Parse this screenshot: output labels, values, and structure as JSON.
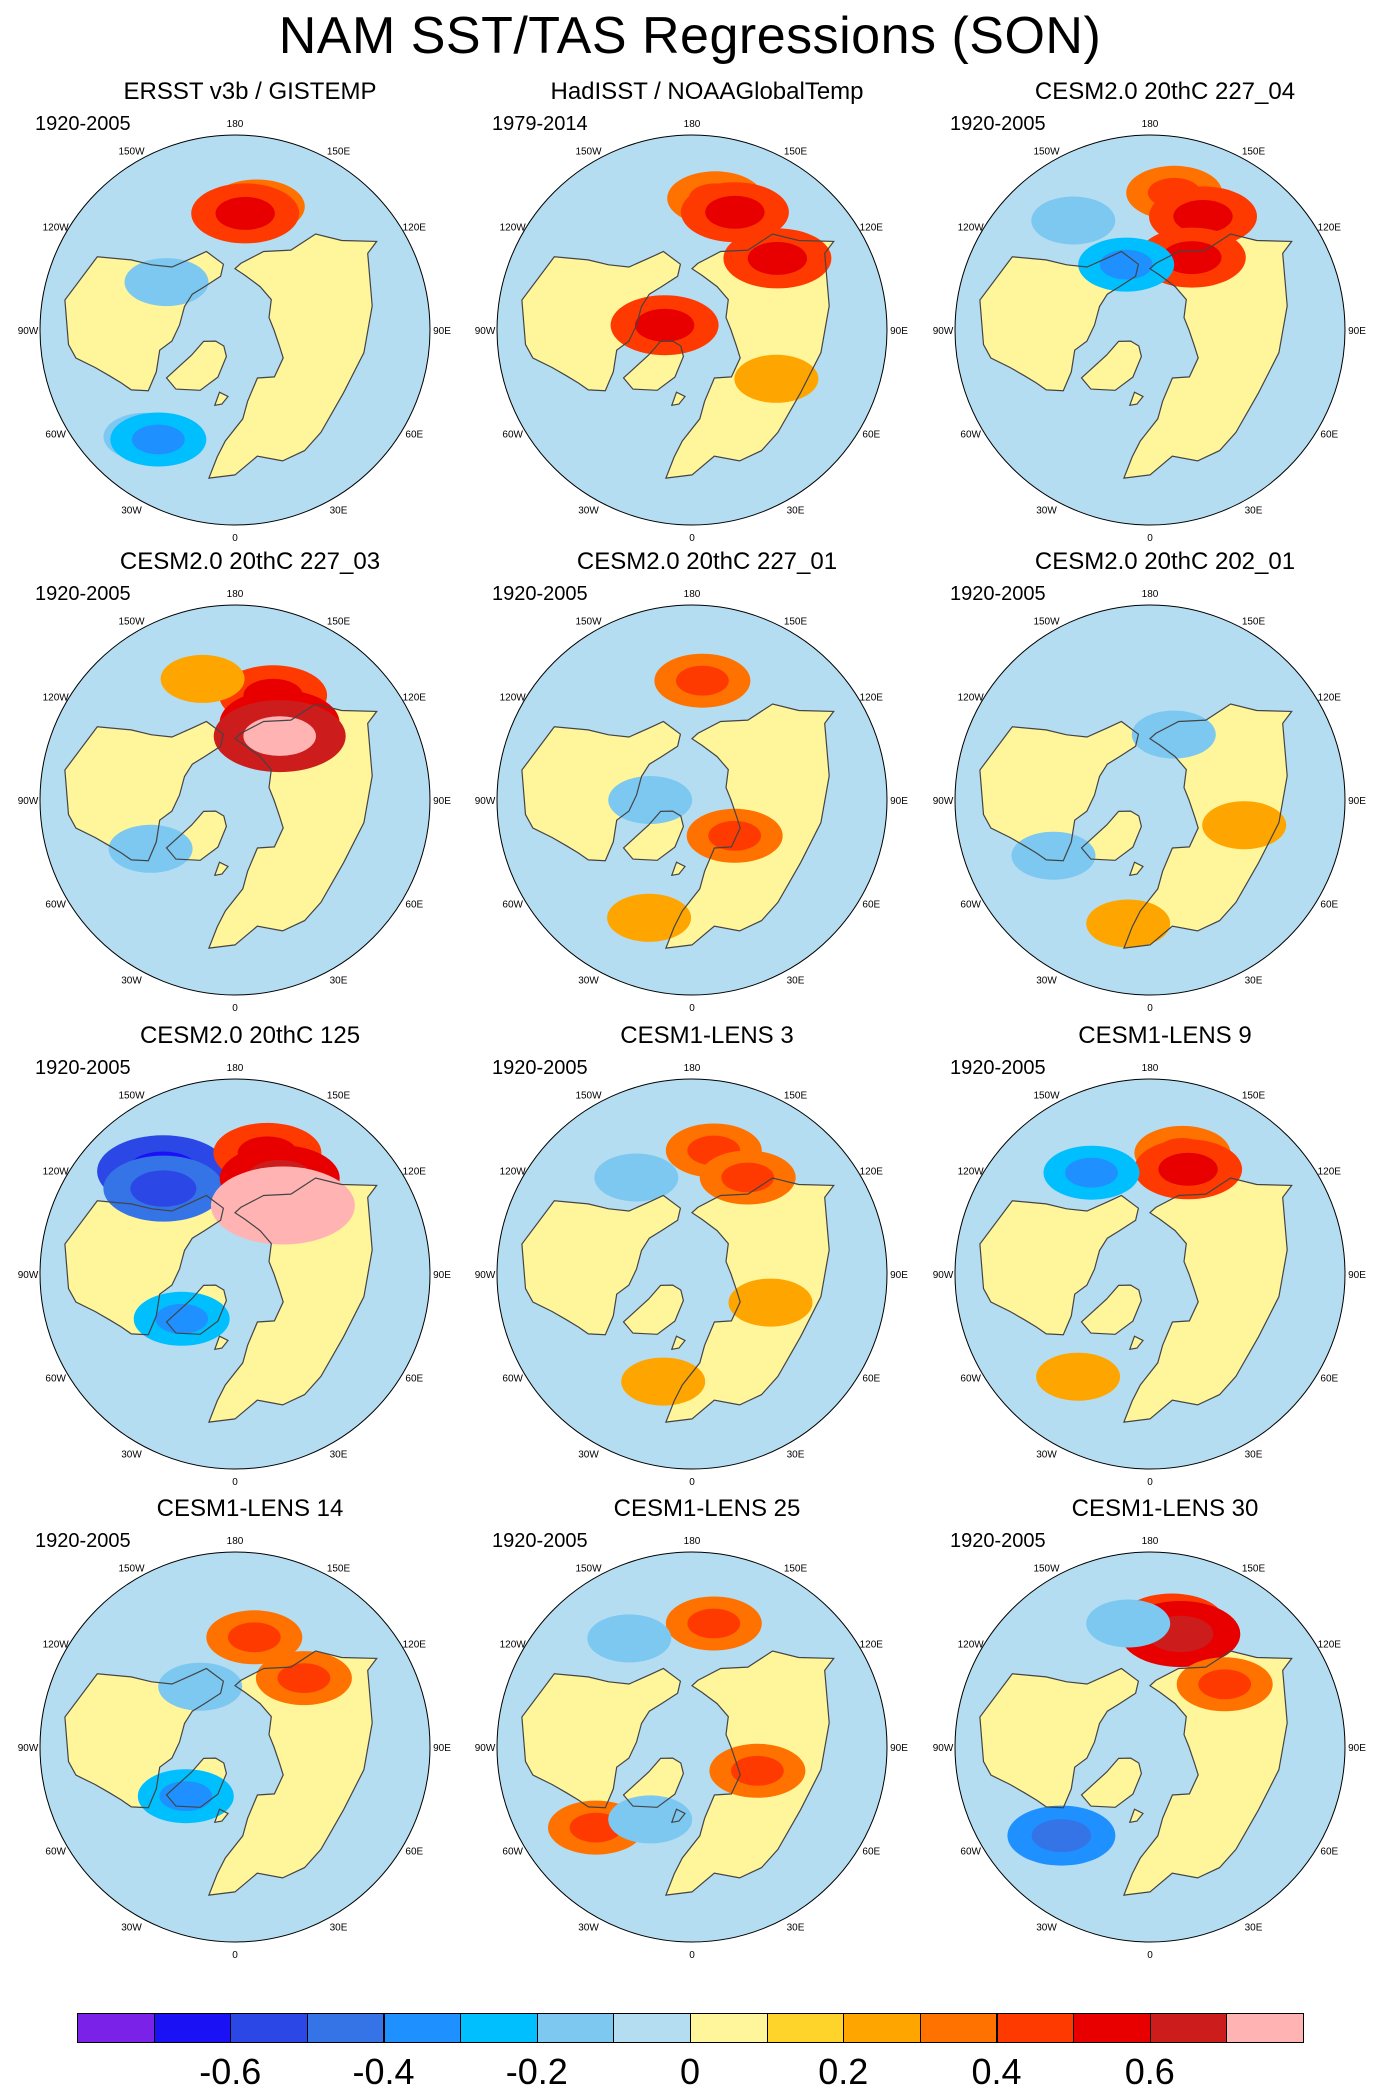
{
  "title": "NAM SST/TAS Regressions (SON)",
  "longitude_labels": [
    "180",
    "150E",
    "120E",
    "90E",
    "60E",
    "30E",
    "0",
    "30W",
    "60W",
    "90W",
    "120W",
    "150W"
  ],
  "colors": {
    "ocean_neutral": "#b4ddf2",
    "land_neutral": "#fff59b",
    "coast": "#444444",
    "missing": "#ffffff"
  },
  "panels": [
    {
      "title": "ERSST v3b / GISTEMP",
      "period": "1920-2005"
    },
    {
      "title": "HadISST / NOAAGlobalTemp",
      "period": "1979-2014"
    },
    {
      "title": "CESM2.0 20thC 227_04",
      "period": "1920-2005"
    },
    {
      "title": "CESM2.0 20thC 227_03",
      "period": "1920-2005"
    },
    {
      "title": "CESM2.0 20thC 227_01",
      "period": "1920-2005"
    },
    {
      "title": "CESM2.0 20thC 202_01",
      "period": "1920-2005"
    },
    {
      "title": "CESM2.0 20thC 125",
      "period": "1920-2005"
    },
    {
      "title": "CESM1-LENS 3",
      "period": "1920-2005"
    },
    {
      "title": "CESM1-LENS 9",
      "period": "1920-2005"
    },
    {
      "title": "CESM1-LENS 14",
      "period": "1920-2005"
    },
    {
      "title": "CESM1-LENS 25",
      "period": "1920-2005"
    },
    {
      "title": "CESM1-LENS 30",
      "period": "1920-2005"
    }
  ],
  "chart_data": {
    "type": "heatmap",
    "projection": "north polar stereographic",
    "title": "NAM SST/TAS Regressions (SON)",
    "colorbar": {
      "levels": [
        -0.7,
        -0.6,
        -0.5,
        -0.4,
        -0.3,
        -0.2,
        -0.1,
        0,
        0.1,
        0.2,
        0.3,
        0.4,
        0.5,
        0.6,
        0.7
      ],
      "colors": [
        "#7b22e8",
        "#1a12f5",
        "#2b48e6",
        "#3474e6",
        "#1e90ff",
        "#00bfff",
        "#7cc8f0",
        "#b4ddf2",
        "#fff59b",
        "#ffd42a",
        "#ffa500",
        "#ff7200",
        "#ff3a00",
        "#e80000",
        "#cc1c1c",
        "#ffb3b3"
      ],
      "tick_labels": [
        "-0.6",
        "-0.4",
        "-0.2",
        "0",
        "0.2",
        "0.4",
        "0.6"
      ],
      "tick_values": [
        -0.6,
        -0.4,
        -0.2,
        0,
        0.2,
        0.4,
        0.6
      ]
    },
    "panels": [
      {
        "name": "ERSST v3b / GISTEMP",
        "features": [
          {
            "lon": 170,
            "lat": 45,
            "value": 0.3
          },
          {
            "lon": 175,
            "lat": 48,
            "value": 0.4
          },
          {
            "lon": -125,
            "lat": 60,
            "value": -0.2
          },
          {
            "lon": -40,
            "lat": 40,
            "value": -0.2
          },
          {
            "lon": -35,
            "lat": 42,
            "value": -0.3
          }
        ]
      },
      {
        "name": "HadISST / NOAAGlobalTemp",
        "features": [
          {
            "lon": 170,
            "lat": 42,
            "value": 0.3
          },
          {
            "lon": 160,
            "lat": 45,
            "value": 0.4
          },
          {
            "lon": 130,
            "lat": 50,
            "value": 0.4
          },
          {
            "lon": 60,
            "lat": 55,
            "value": 0.2
          },
          {
            "lon": -100,
            "lat": 80,
            "value": 0.4
          }
        ]
      },
      {
        "name": "CESM2.0 20thC 227_04",
        "features": [
          {
            "lon": 170,
            "lat": 40,
            "value": 0.3
          },
          {
            "lon": 155,
            "lat": 45,
            "value": 0.4
          },
          {
            "lon": -145,
            "lat": 42,
            "value": -0.2
          },
          {
            "lon": 150,
            "lat": 60,
            "value": 0.4
          },
          {
            "lon": -160,
            "lat": 65,
            "value": -0.3
          }
        ]
      },
      {
        "name": "CESM2.0 20thC 227_03",
        "features": [
          {
            "lon": 160,
            "lat": 50,
            "value": 0.4
          },
          {
            "lon": 150,
            "lat": 58,
            "value": 0.5
          },
          {
            "lon": 145,
            "lat": 62,
            "value": 0.6
          },
          {
            "lon": -165,
            "lat": 45,
            "value": 0.2
          },
          {
            "lon": -60,
            "lat": 55,
            "value": -0.2
          }
        ]
      },
      {
        "name": "CESM2.0 20thC 227_01",
        "features": [
          {
            "lon": 175,
            "lat": 47,
            "value": 0.3
          },
          {
            "lon": 50,
            "lat": 70,
            "value": 0.3
          },
          {
            "lon": -20,
            "lat": 45,
            "value": 0.2
          },
          {
            "lon": -90,
            "lat": 75,
            "value": -0.2
          }
        ]
      },
      {
        "name": "CESM2.0 20thC 202_01",
        "features": [
          {
            "lon": 75,
            "lat": 55,
            "value": 0.2
          },
          {
            "lon": -10,
            "lat": 45,
            "value": 0.2
          },
          {
            "lon": -60,
            "lat": 50,
            "value": -0.2
          },
          {
            "lon": 160,
            "lat": 65,
            "value": -0.2
          }
        ]
      },
      {
        "name": "CESM2.0 20thC 125",
        "features": [
          {
            "lon": -145,
            "lat": 45,
            "value": -0.6
          },
          {
            "lon": -140,
            "lat": 50,
            "value": -0.5
          },
          {
            "lon": 165,
            "lat": 45,
            "value": 0.4
          },
          {
            "lon": 155,
            "lat": 52,
            "value": 0.5
          },
          {
            "lon": 145,
            "lat": 60,
            "value": 0.7
          },
          {
            "lon": -50,
            "lat": 65,
            "value": -0.3
          }
        ]
      },
      {
        "name": "CESM1-LENS 3",
        "features": [
          {
            "lon": 170,
            "lat": 45,
            "value": 0.3
          },
          {
            "lon": 150,
            "lat": 50,
            "value": 0.3
          },
          {
            "lon": 70,
            "lat": 60,
            "value": 0.2
          },
          {
            "lon": -150,
            "lat": 50,
            "value": -0.2
          },
          {
            "lon": -15,
            "lat": 50,
            "value": 0.2
          }
        ]
      },
      {
        "name": "CESM1-LENS 9",
        "features": [
          {
            "lon": 165,
            "lat": 45,
            "value": 0.3
          },
          {
            "lon": 160,
            "lat": 50,
            "value": 0.4
          },
          {
            "lon": -150,
            "lat": 48,
            "value": -0.3
          },
          {
            "lon": -35,
            "lat": 45,
            "value": 0.2
          }
        ]
      },
      {
        "name": "CESM1-LENS 14",
        "features": [
          {
            "lon": 170,
            "lat": 50,
            "value": 0.3
          },
          {
            "lon": 135,
            "lat": 55,
            "value": 0.3
          },
          {
            "lon": -150,
            "lat": 65,
            "value": -0.2
          },
          {
            "lon": -45,
            "lat": 65,
            "value": -0.3
          }
        ]
      },
      {
        "name": "CESM1-LENS 25",
        "features": [
          {
            "lon": 170,
            "lat": 45,
            "value": 0.3
          },
          {
            "lon": -150,
            "lat": 45,
            "value": -0.2
          },
          {
            "lon": 70,
            "lat": 65,
            "value": 0.3
          },
          {
            "lon": -50,
            "lat": 45,
            "value": 0.3
          },
          {
            "lon": -30,
            "lat": 60,
            "value": -0.2
          }
        ]
      },
      {
        "name": "CESM1-LENS 30",
        "features": [
          {
            "lon": 170,
            "lat": 45,
            "value": 0.4
          },
          {
            "lon": 165,
            "lat": 48,
            "value": 0.5
          },
          {
            "lon": -45,
            "lat": 45,
            "value": -0.4
          },
          {
            "lon": -170,
            "lat": 45,
            "value": -0.2
          },
          {
            "lon": 130,
            "lat": 55,
            "value": 0.3
          }
        ]
      }
    ]
  }
}
